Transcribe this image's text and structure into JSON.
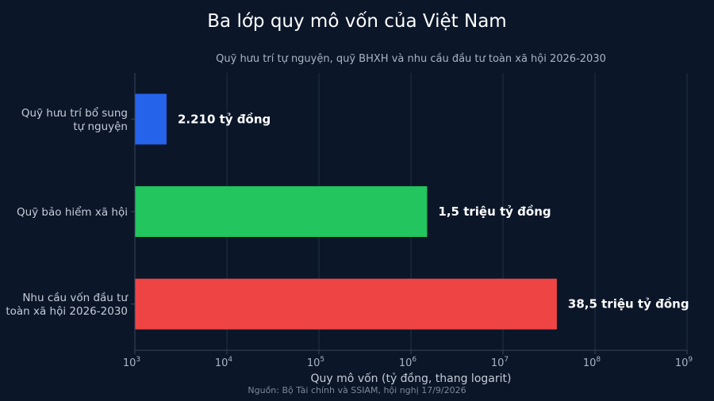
{
  "chart_data": {
    "type": "bar",
    "orientation": "horizontal",
    "title": "Ba lớp quy mô vốn của Việt Nam",
    "subtitle": "Quỹ hưu trí tự nguyện, quỹ BHXH và nhu cầu đầu tư toàn xã hội 2026-2030",
    "xlabel": "Quy mô vốn (tỷ đồng, thang logarit)",
    "xscale": "log",
    "xlim": [
      1000,
      1000000000
    ],
    "grid": true,
    "source": "Nguồn: Bộ Tài chính và SSIAM, hội nghị 17/9/2026",
    "ticks": [
      {
        "base": "10",
        "exp": "3"
      },
      {
        "base": "10",
        "exp": "4"
      },
      {
        "base": "10",
        "exp": "5"
      },
      {
        "base": "10",
        "exp": "6"
      },
      {
        "base": "10",
        "exp": "7"
      },
      {
        "base": "10",
        "exp": "8"
      },
      {
        "base": "10",
        "exp": "9"
      }
    ],
    "categories": [
      [
        "Quỹ hưu trí bổ sung",
        "tự nguyện"
      ],
      [
        "Quỹ bảo hiểm xã hội"
      ],
      [
        "Nhu cầu vốn đầu tư",
        "toàn xã hội 2026-2030"
      ]
    ],
    "values": [
      2210,
      1500000,
      38500000
    ],
    "value_labels": [
      "2.210 tỷ đồng",
      "1,5 triệu tỷ đồng",
      "38,5 triệu tỷ đồng"
    ],
    "colors": [
      "#2563eb",
      "#22c55e",
      "#ef4444"
    ]
  }
}
